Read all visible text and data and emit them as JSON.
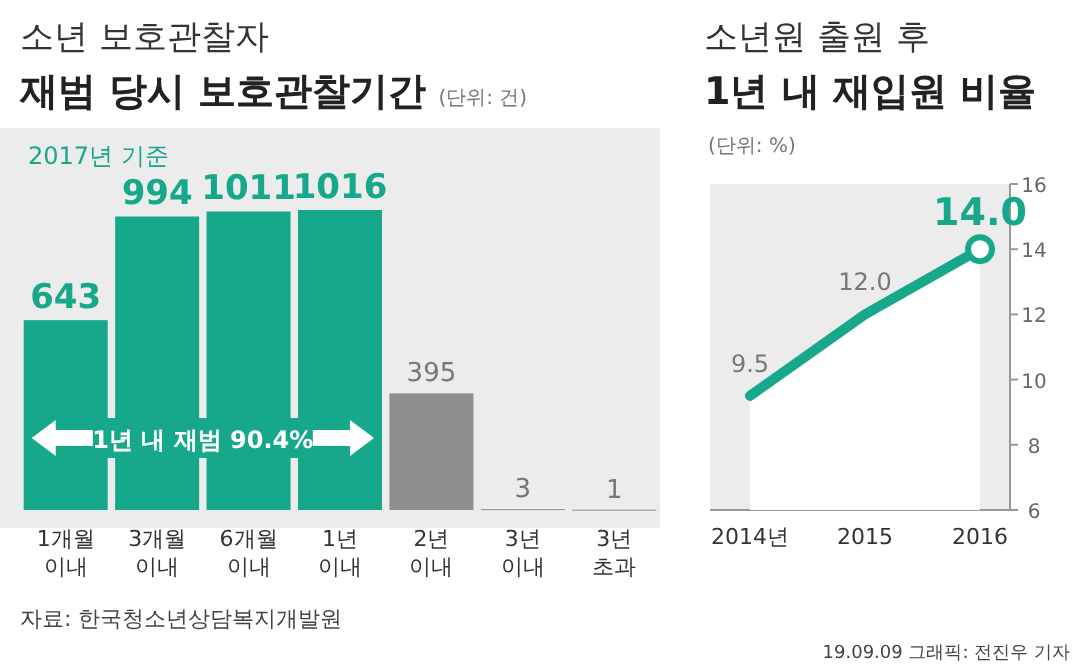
{
  "chart_data": [
    {
      "type": "bar",
      "subtitle": "소년 보호관찰자",
      "title": "재범 당시 보호관찰기간",
      "categories": [
        "1개월 이내",
        "3개월 이내",
        "6개월 이내",
        "1년 이내",
        "2년 이내",
        "3년 이내",
        "3년 초과"
      ],
      "values": [
        643,
        994,
        1011,
        1016,
        395,
        3,
        1
      ],
      "colors": [
        "#17a88c",
        "#17a88c",
        "#17a88c",
        "#17a88c",
        "#8e8e8e",
        "#8e8e8e",
        "#8e8e8e"
      ],
      "data_labels": true,
      "annotations": [
        "(단위: 건)",
        "2017년 기준",
        "1년 내 재범 90.4%",
        "자료: 한국청소년상담복지개발원"
      ]
    },
    {
      "type": "area",
      "subtitle": "소년원 출원 후",
      "title": "1년 내 재입원 비율",
      "categories": [
        "2014년",
        "2015",
        "2016"
      ],
      "series": [
        {
          "color": "#17a88c",
          "values": [
            9.5,
            12.0,
            14.0
          ],
          "value_labels": [
            "9.5",
            "12.0",
            "14.0"
          ]
        }
      ],
      "ylim": [
        6,
        16
      ],
      "yticks": [
        6,
        8,
        10,
        12,
        14,
        16
      ],
      "annotations": [
        "(단위: %)",
        "19.09.09 그래픽: 전진우 기자"
      ]
    }
  ]
}
